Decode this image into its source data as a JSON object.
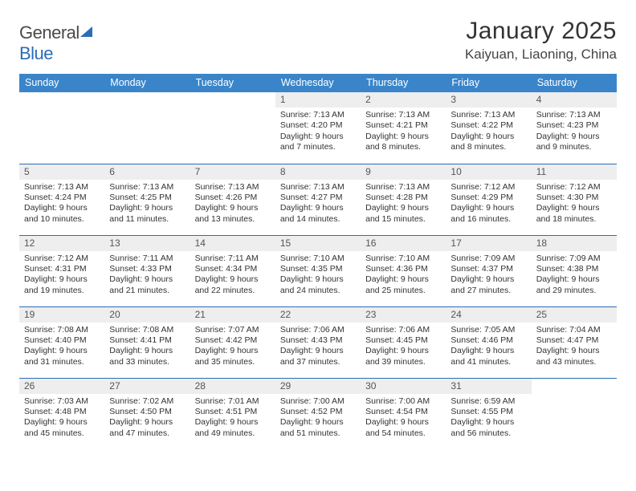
{
  "logo": {
    "text1": "General",
    "text2": "Blue"
  },
  "title": "January 2025",
  "location": "Kaiyuan, Liaoning, China",
  "days_of_week": [
    "Sunday",
    "Monday",
    "Tuesday",
    "Wednesday",
    "Thursday",
    "Friday",
    "Saturday"
  ],
  "colors": {
    "header_bg": "#3a85c9",
    "header_text": "#ffffff",
    "row_border": "#2a6db8",
    "dayhead_bg": "#eeeeee",
    "body_text": "#333333"
  },
  "weeks": [
    [
      {
        "date": "",
        "sunrise": "",
        "sunset": "",
        "daylight": ""
      },
      {
        "date": "",
        "sunrise": "",
        "sunset": "",
        "daylight": ""
      },
      {
        "date": "",
        "sunrise": "",
        "sunset": "",
        "daylight": ""
      },
      {
        "date": "1",
        "sunrise": "Sunrise: 7:13 AM",
        "sunset": "Sunset: 4:20 PM",
        "daylight": "Daylight: 9 hours and 7 minutes."
      },
      {
        "date": "2",
        "sunrise": "Sunrise: 7:13 AM",
        "sunset": "Sunset: 4:21 PM",
        "daylight": "Daylight: 9 hours and 8 minutes."
      },
      {
        "date": "3",
        "sunrise": "Sunrise: 7:13 AM",
        "sunset": "Sunset: 4:22 PM",
        "daylight": "Daylight: 9 hours and 8 minutes."
      },
      {
        "date": "4",
        "sunrise": "Sunrise: 7:13 AM",
        "sunset": "Sunset: 4:23 PM",
        "daylight": "Daylight: 9 hours and 9 minutes."
      }
    ],
    [
      {
        "date": "5",
        "sunrise": "Sunrise: 7:13 AM",
        "sunset": "Sunset: 4:24 PM",
        "daylight": "Daylight: 9 hours and 10 minutes."
      },
      {
        "date": "6",
        "sunrise": "Sunrise: 7:13 AM",
        "sunset": "Sunset: 4:25 PM",
        "daylight": "Daylight: 9 hours and 11 minutes."
      },
      {
        "date": "7",
        "sunrise": "Sunrise: 7:13 AM",
        "sunset": "Sunset: 4:26 PM",
        "daylight": "Daylight: 9 hours and 13 minutes."
      },
      {
        "date": "8",
        "sunrise": "Sunrise: 7:13 AM",
        "sunset": "Sunset: 4:27 PM",
        "daylight": "Daylight: 9 hours and 14 minutes."
      },
      {
        "date": "9",
        "sunrise": "Sunrise: 7:13 AM",
        "sunset": "Sunset: 4:28 PM",
        "daylight": "Daylight: 9 hours and 15 minutes."
      },
      {
        "date": "10",
        "sunrise": "Sunrise: 7:12 AM",
        "sunset": "Sunset: 4:29 PM",
        "daylight": "Daylight: 9 hours and 16 minutes."
      },
      {
        "date": "11",
        "sunrise": "Sunrise: 7:12 AM",
        "sunset": "Sunset: 4:30 PM",
        "daylight": "Daylight: 9 hours and 18 minutes."
      }
    ],
    [
      {
        "date": "12",
        "sunrise": "Sunrise: 7:12 AM",
        "sunset": "Sunset: 4:31 PM",
        "daylight": "Daylight: 9 hours and 19 minutes."
      },
      {
        "date": "13",
        "sunrise": "Sunrise: 7:11 AM",
        "sunset": "Sunset: 4:33 PM",
        "daylight": "Daylight: 9 hours and 21 minutes."
      },
      {
        "date": "14",
        "sunrise": "Sunrise: 7:11 AM",
        "sunset": "Sunset: 4:34 PM",
        "daylight": "Daylight: 9 hours and 22 minutes."
      },
      {
        "date": "15",
        "sunrise": "Sunrise: 7:10 AM",
        "sunset": "Sunset: 4:35 PM",
        "daylight": "Daylight: 9 hours and 24 minutes."
      },
      {
        "date": "16",
        "sunrise": "Sunrise: 7:10 AM",
        "sunset": "Sunset: 4:36 PM",
        "daylight": "Daylight: 9 hours and 25 minutes."
      },
      {
        "date": "17",
        "sunrise": "Sunrise: 7:09 AM",
        "sunset": "Sunset: 4:37 PM",
        "daylight": "Daylight: 9 hours and 27 minutes."
      },
      {
        "date": "18",
        "sunrise": "Sunrise: 7:09 AM",
        "sunset": "Sunset: 4:38 PM",
        "daylight": "Daylight: 9 hours and 29 minutes."
      }
    ],
    [
      {
        "date": "19",
        "sunrise": "Sunrise: 7:08 AM",
        "sunset": "Sunset: 4:40 PM",
        "daylight": "Daylight: 9 hours and 31 minutes."
      },
      {
        "date": "20",
        "sunrise": "Sunrise: 7:08 AM",
        "sunset": "Sunset: 4:41 PM",
        "daylight": "Daylight: 9 hours and 33 minutes."
      },
      {
        "date": "21",
        "sunrise": "Sunrise: 7:07 AM",
        "sunset": "Sunset: 4:42 PM",
        "daylight": "Daylight: 9 hours and 35 minutes."
      },
      {
        "date": "22",
        "sunrise": "Sunrise: 7:06 AM",
        "sunset": "Sunset: 4:43 PM",
        "daylight": "Daylight: 9 hours and 37 minutes."
      },
      {
        "date": "23",
        "sunrise": "Sunrise: 7:06 AM",
        "sunset": "Sunset: 4:45 PM",
        "daylight": "Daylight: 9 hours and 39 minutes."
      },
      {
        "date": "24",
        "sunrise": "Sunrise: 7:05 AM",
        "sunset": "Sunset: 4:46 PM",
        "daylight": "Daylight: 9 hours and 41 minutes."
      },
      {
        "date": "25",
        "sunrise": "Sunrise: 7:04 AM",
        "sunset": "Sunset: 4:47 PM",
        "daylight": "Daylight: 9 hours and 43 minutes."
      }
    ],
    [
      {
        "date": "26",
        "sunrise": "Sunrise: 7:03 AM",
        "sunset": "Sunset: 4:48 PM",
        "daylight": "Daylight: 9 hours and 45 minutes."
      },
      {
        "date": "27",
        "sunrise": "Sunrise: 7:02 AM",
        "sunset": "Sunset: 4:50 PM",
        "daylight": "Daylight: 9 hours and 47 minutes."
      },
      {
        "date": "28",
        "sunrise": "Sunrise: 7:01 AM",
        "sunset": "Sunset: 4:51 PM",
        "daylight": "Daylight: 9 hours and 49 minutes."
      },
      {
        "date": "29",
        "sunrise": "Sunrise: 7:00 AM",
        "sunset": "Sunset: 4:52 PM",
        "daylight": "Daylight: 9 hours and 51 minutes."
      },
      {
        "date": "30",
        "sunrise": "Sunrise: 7:00 AM",
        "sunset": "Sunset: 4:54 PM",
        "daylight": "Daylight: 9 hours and 54 minutes."
      },
      {
        "date": "31",
        "sunrise": "Sunrise: 6:59 AM",
        "sunset": "Sunset: 4:55 PM",
        "daylight": "Daylight: 9 hours and 56 minutes."
      },
      {
        "date": "",
        "sunrise": "",
        "sunset": "",
        "daylight": ""
      }
    ]
  ]
}
